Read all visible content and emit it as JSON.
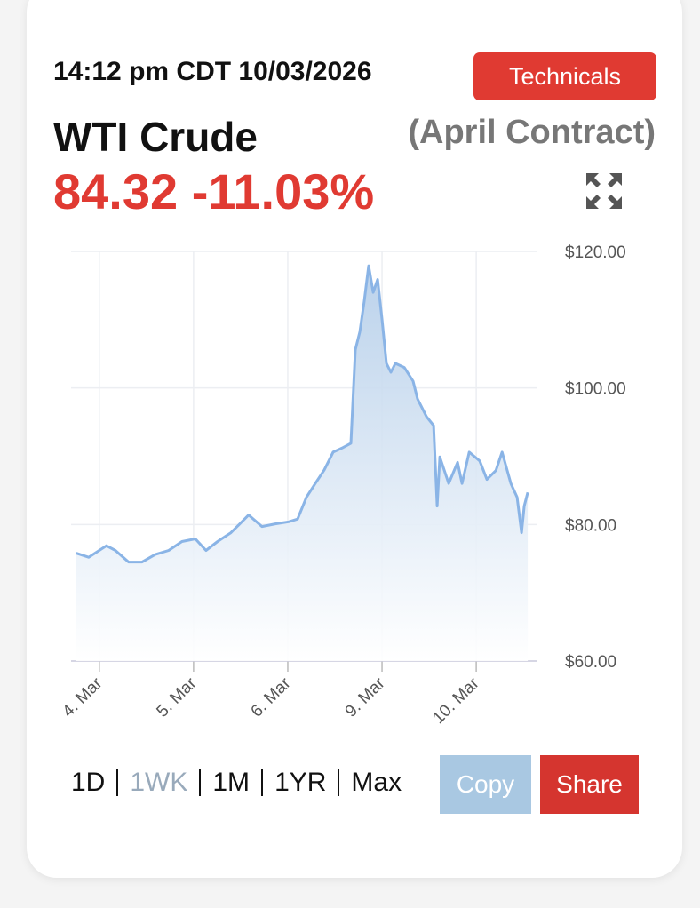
{
  "header": {
    "timestamp": "14:12 pm CDT 10/03/2026",
    "technicals_button": "Technicals",
    "instrument": "WTI Crude",
    "contract": "(April Contract)",
    "price": "84.32",
    "change": "-11.03%"
  },
  "chart_data": {
    "type": "line",
    "color": "#8ab4e6",
    "grid": true,
    "x": [
      -0.245,
      -0.113,
      0.075,
      0.17,
      0.311,
      0.453,
      0.594,
      0.736,
      0.877,
      1.019,
      1.132,
      1.255,
      1.396,
      1.491,
      1.585,
      1.726,
      1.868,
      2.009,
      2.104,
      2.198,
      2.292,
      2.387,
      2.481,
      2.575,
      2.67,
      2.717,
      2.764,
      2.811,
      2.858,
      2.906,
      2.953,
      3.0,
      3.047,
      3.094,
      3.142,
      3.236,
      3.33,
      3.377,
      3.472,
      3.547,
      3.585,
      3.613,
      3.708,
      3.802,
      3.849,
      3.925,
      4.038,
      4.113,
      4.208,
      4.274,
      4.368,
      4.434,
      4.481,
      4.509,
      4.547
    ],
    "values": [
      75.8,
      75.2,
      76.9,
      76.2,
      74.5,
      74.5,
      75.6,
      76.2,
      77.5,
      77.9,
      76.2,
      77.5,
      78.8,
      80.1,
      81.4,
      79.7,
      80.1,
      80.4,
      80.8,
      84.0,
      86.0,
      88.0,
      90.6,
      91.2,
      91.9,
      105.6,
      108.2,
      112.7,
      117.9,
      114.0,
      115.9,
      110.1,
      103.6,
      102.3,
      103.6,
      103.0,
      101.0,
      98.4,
      95.8,
      94.5,
      82.7,
      89.9,
      86.0,
      89.1,
      86.0,
      90.6,
      89.3,
      86.6,
      87.9,
      90.6,
      86.0,
      84.0,
      78.8,
      82.7,
      84.7
    ],
    "xlim": [
      -0.3,
      4.64
    ],
    "xticks": [
      {
        "value": 0,
        "label": "4. Mar"
      },
      {
        "value": 1,
        "label": "5. Mar"
      },
      {
        "value": 2,
        "label": "6. Mar"
      },
      {
        "value": 3,
        "label": "9. Mar"
      },
      {
        "value": 4,
        "label": "10. Mar"
      }
    ],
    "ylim": [
      60,
      120
    ],
    "yticks": [
      {
        "value": 60,
        "label": "$60.00"
      },
      {
        "value": 80,
        "label": "$80.00"
      },
      {
        "value": 100,
        "label": "$100.00"
      },
      {
        "value": 120,
        "label": "$120.00"
      }
    ]
  },
  "footer": {
    "ranges": [
      "1D",
      "1WK",
      "1M",
      "1YR",
      "Max"
    ],
    "copy_button": "Copy",
    "share_button": "Share"
  }
}
